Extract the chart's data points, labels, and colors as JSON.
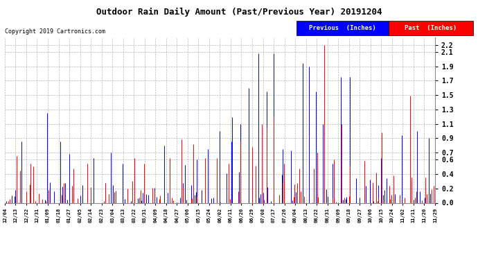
{
  "title": "Outdoor Rain Daily Amount (Past/Previous Year) 20191204",
  "copyright": "Copyright 2019 Cartronics.com",
  "legend_previous": "Previous  (Inches)",
  "legend_past": "Past  (Inches)",
  "color_previous": "#0000ff",
  "color_past": "#ff0000",
  "color_bg": "#ffffff",
  "color_grid": "#888888",
  "ylim": [
    0.0,
    2.3
  ],
  "yticks": [
    0.0,
    0.2,
    0.4,
    0.6,
    0.7,
    0.9,
    1.1,
    1.3,
    1.5,
    1.7,
    1.9,
    2.1,
    2.2
  ],
  "ytick_labels": [
    "0.0",
    "0.2",
    "0.4",
    "0.6",
    "0.7",
    "0.9",
    "1.1",
    "1.3",
    "1.5",
    "1.7",
    "1.9",
    "2.1",
    "2.2"
  ],
  "x_labels": [
    "12/04",
    "12/13",
    "12/22",
    "12/31",
    "01/09",
    "01/18",
    "01/27",
    "02/05",
    "02/14",
    "02/23",
    "03/04",
    "03/13",
    "03/22",
    "03/31",
    "04/09",
    "04/18",
    "04/27",
    "05/06",
    "05/15",
    "05/24",
    "06/02",
    "06/11",
    "06/20",
    "06/29",
    "07/08",
    "07/17",
    "07/26",
    "08/04",
    "08/13",
    "08/22",
    "08/31",
    "09/09",
    "09/18",
    "09/27",
    "10/06",
    "10/15",
    "10/24",
    "11/02",
    "11/11",
    "11/20",
    "11/29"
  ],
  "num_days": 366,
  "seed": 42
}
